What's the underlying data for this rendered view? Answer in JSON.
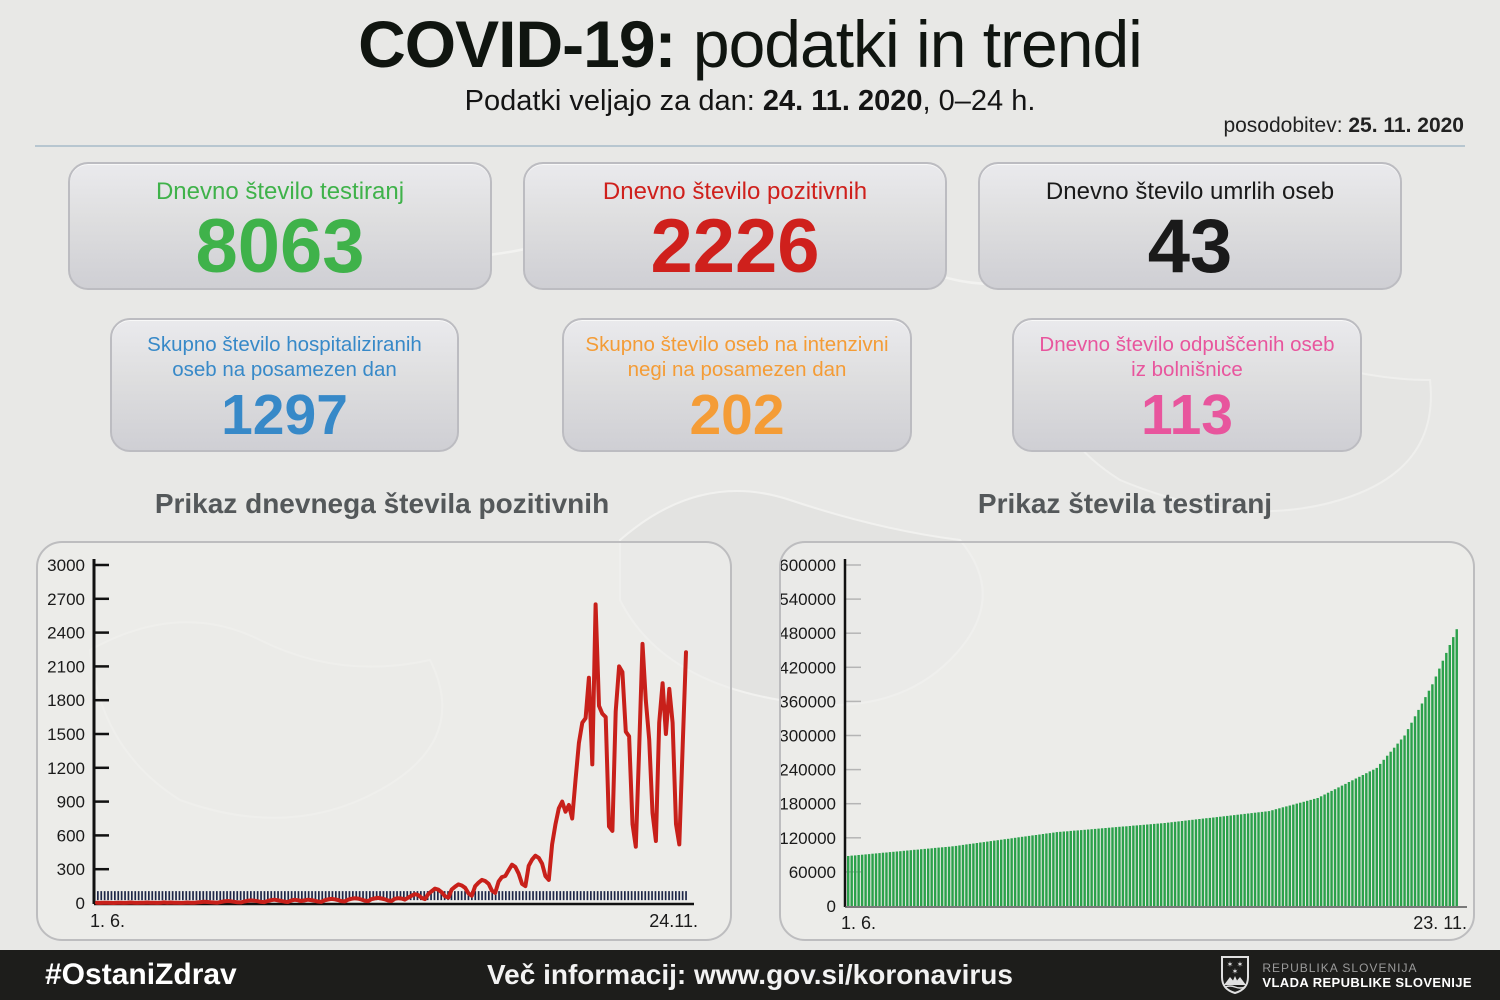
{
  "header": {
    "title_bold": "COVID-19:",
    "title_rest": " podatki in trendi",
    "subtitle_prefix": "Podatki veljajo za dan: ",
    "subtitle_date": "24. 11. 2020",
    "subtitle_suffix": ", 0–24 h.",
    "update_prefix": "posodobitev: ",
    "update_date": "25. 11. 2020"
  },
  "cards": [
    {
      "title": "Dnevno število testiranj",
      "value": "8063",
      "color": "#3fb24a"
    },
    {
      "title": "Dnevno število pozitivnih",
      "value": "2226",
      "color": "#cf201c"
    },
    {
      "title": "Dnevno število umrlih oseb",
      "value": "43",
      "color": "#1a1a1a"
    },
    {
      "title": "Skupno število hospitaliziranih oseb na posamezen dan",
      "value": "1297",
      "color": "#3789c8"
    },
    {
      "title": "Skupno število oseb na intenzivni negi na posamezen dan",
      "value": "202",
      "color": "#f49c36"
    },
    {
      "title": "Dnevno število odpuščenih oseb iz bolnišnice",
      "value": "113",
      "color": "#e8559d"
    }
  ],
  "chart_data": [
    {
      "type": "line",
      "title": "Prikaz dnevnega števila pozitivnih",
      "color": "#c8201a",
      "tick_band_color": "#1e2748",
      "axis_color": "#111111",
      "x_start_label": "1. 6.",
      "x_end_label": "24.11.",
      "ylim": [
        0,
        3000
      ],
      "y_ticks": [
        0,
        300,
        600,
        900,
        1200,
        1500,
        1800,
        2100,
        2400,
        2700,
        3000
      ],
      "x_range_note": "daily values 1.6.2020 - 24.11.2020",
      "values": [
        2,
        1,
        3,
        2,
        1,
        0,
        2,
        3,
        1,
        2,
        4,
        2,
        1,
        3,
        2,
        4,
        2,
        3,
        1,
        2,
        5,
        3,
        4,
        2,
        3,
        1,
        2,
        4,
        3,
        2,
        5,
        8,
        11,
        9,
        6,
        4,
        3,
        9,
        14,
        18,
        15,
        11,
        6,
        5,
        13,
        19,
        23,
        20,
        16,
        10,
        8,
        18,
        25,
        29,
        24,
        19,
        12,
        9,
        21,
        28,
        25,
        18,
        23,
        29,
        26,
        20,
        13,
        10,
        24,
        31,
        36,
        33,
        27,
        17,
        14,
        29,
        37,
        42,
        39,
        31,
        21,
        17,
        34,
        41,
        45,
        40,
        33,
        22,
        18,
        37,
        43,
        40,
        30,
        48,
        65,
        78,
        70,
        45,
        35,
        80,
        105,
        128,
        118,
        95,
        60,
        48,
        120,
        145,
        165,
        155,
        135,
        85,
        65,
        150,
        180,
        205,
        195,
        170,
        110,
        90,
        190,
        230,
        240,
        290,
        340,
        320,
        260,
        170,
        150,
        330,
        385,
        420,
        400,
        350,
        240,
        205,
        520,
        700,
        840,
        900,
        810,
        870,
        750,
        1100,
        1420,
        1600,
        1640,
        2000,
        1230,
        2650,
        1750,
        1680,
        1650,
        680,
        640,
        1700,
        2100,
        2050,
        1520,
        1480,
        700,
        500,
        1350,
        2300,
        1800,
        1450,
        800,
        550,
        1600,
        1950,
        1500,
        1900,
        1600,
        700,
        520,
        1400,
        2226
      ]
    },
    {
      "type": "bar",
      "title": "Prikaz števila testiranj",
      "color": "#2ba14b",
      "axis_color": "#111111",
      "tick_color": "#b5b5b5",
      "x_start_label": "1. 6.",
      "x_end_label": "23. 11.",
      "ylim": [
        0,
        600000
      ],
      "y_ticks": [
        0,
        60000,
        120000,
        180000,
        240000,
        300000,
        360000,
        420000,
        480000,
        540000,
        600000
      ],
      "x_range_note": "cumulative tests 1.6.2020 - 23.11.2020",
      "values": [
        88000,
        88600,
        89100,
        89700,
        90300,
        90800,
        91400,
        92000,
        92500,
        93100,
        93700,
        94200,
        94800,
        95400,
        95900,
        96500,
        97100,
        97600,
        98200,
        98800,
        99300,
        99900,
        100500,
        101000,
        101600,
        102200,
        102700,
        103300,
        103900,
        104400,
        105000,
        105800,
        106700,
        107500,
        108300,
        109200,
        110000,
        110800,
        111700,
        112500,
        113300,
        114200,
        115000,
        115800,
        116700,
        117500,
        118300,
        119200,
        120000,
        120800,
        121700,
        122500,
        123300,
        124200,
        125000,
        125800,
        126700,
        127500,
        128300,
        129200,
        130000,
        130500,
        131000,
        131500,
        132100,
        132600,
        133100,
        133600,
        134100,
        134600,
        135200,
        135700,
        136200,
        136700,
        137200,
        137700,
        138300,
        138800,
        139300,
        139800,
        140300,
        140800,
        141400,
        141900,
        142400,
        142900,
        143400,
        143900,
        144500,
        145000,
        145500,
        146000,
        146700,
        147400,
        148100,
        148800,
        149500,
        150200,
        150900,
        151600,
        152300,
        153000,
        153700,
        154400,
        155100,
        155800,
        156500,
        157200,
        157900,
        158600,
        159300,
        160000,
        160700,
        161400,
        162100,
        162800,
        163500,
        164200,
        164900,
        165600,
        166300,
        167000,
        168600,
        170300,
        171900,
        173600,
        175200,
        176900,
        178500,
        180100,
        181800,
        183400,
        185100,
        186700,
        188400,
        190000,
        193100,
        196200,
        199400,
        202500,
        205600,
        208700,
        211800,
        214900,
        218100,
        221200,
        224300,
        227400,
        230500,
        233600,
        236800,
        239900,
        243000,
        250100,
        257300,
        264400,
        271500,
        278600,
        285800,
        292900,
        300000,
        311300,
        322500,
        333800,
        345000,
        356300,
        367500,
        378800,
        390000,
        403900,
        417700,
        431600,
        445400,
        459300,
        473100,
        487000
      ]
    }
  ],
  "footer": {
    "hashtag": "#OstaniZdrav",
    "info": "Več informacij: www.gov.si/koronavirus",
    "gov_line1": "REPUBLIKA SLOVENIJA",
    "gov_line2": "VLADA REPUBLIKE SLOVENIJE"
  }
}
